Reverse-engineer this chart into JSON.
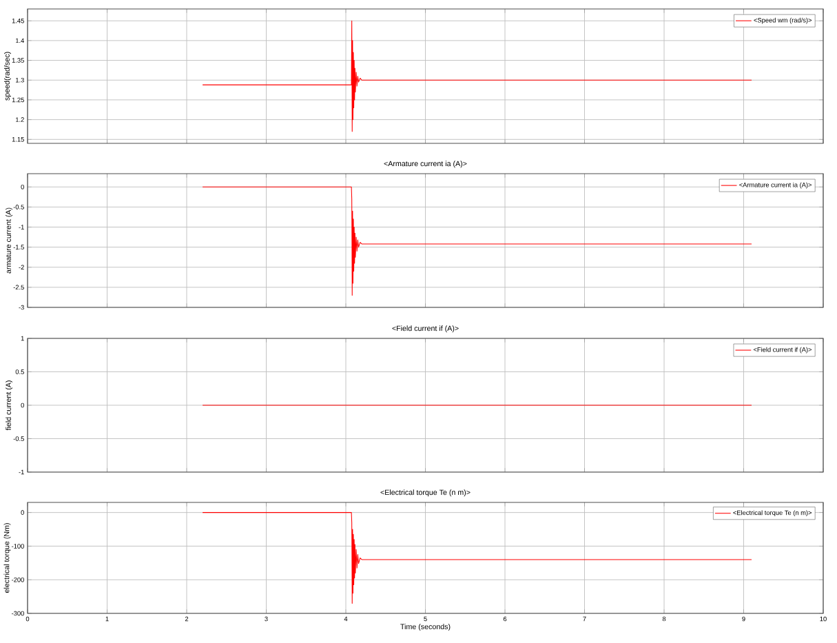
{
  "chart_data": [
    {
      "type": "line",
      "xlim": [
        0,
        10
      ],
      "xticks": [
        0,
        1,
        2,
        3,
        4,
        5,
        6,
        7,
        8,
        9,
        10
      ],
      "ylim": [
        1.14,
        1.48
      ],
      "yticks": [
        1.15,
        1.2,
        1.25,
        1.3,
        1.35,
        1.4,
        1.45
      ],
      "ylabel": "speed(rad/sec)",
      "grid": true,
      "legend": "top right",
      "tick_labels": "y",
      "series": [
        {
          "name": "<Speed wm (rad/s)>",
          "color": "#ff0000",
          "x": [
            2.2,
            4.07,
            4.075,
            4.08,
            4.085,
            4.09,
            4.095,
            4.1,
            4.105,
            4.11,
            4.115,
            4.12,
            4.13,
            4.14,
            4.15,
            4.16,
            4.18,
            4.2,
            9.1
          ],
          "values": [
            1.288,
            1.288,
            1.45,
            1.17,
            1.4,
            1.2,
            1.37,
            1.23,
            1.35,
            1.25,
            1.33,
            1.27,
            1.32,
            1.285,
            1.31,
            1.295,
            1.305,
            1.3,
            1.3
          ]
        }
      ]
    },
    {
      "type": "line",
      "title": "<Armature current ia (A)>",
      "xlim": [
        0,
        10
      ],
      "xticks": [
        0,
        1,
        2,
        3,
        4,
        5,
        6,
        7,
        8,
        9,
        10
      ],
      "ylim": [
        -3,
        0.33
      ],
      "yticks": [
        -3,
        -2.5,
        -2,
        -1.5,
        -1,
        -0.5,
        0
      ],
      "ylabel": "armature current (A)",
      "grid": true,
      "legend": "top right",
      "tick_labels": "y",
      "series": [
        {
          "name": "<Armature current ia (A)>",
          "color": "#ff0000",
          "x": [
            2.2,
            4.07,
            4.075,
            4.08,
            4.085,
            4.09,
            4.095,
            4.1,
            4.105,
            4.11,
            4.115,
            4.12,
            4.13,
            4.14,
            4.15,
            4.16,
            4.18,
            4.2,
            9.1
          ],
          "values": [
            0,
            0,
            -0.3,
            -2.7,
            -0.6,
            -2.4,
            -0.8,
            -2.1,
            -1.0,
            -1.9,
            -1.15,
            -1.75,
            -1.25,
            -1.6,
            -1.32,
            -1.5,
            -1.38,
            -1.42,
            -1.42
          ]
        }
      ]
    },
    {
      "type": "line",
      "title": "<Field current if (A)>",
      "xlim": [
        0,
        10
      ],
      "xticks": [
        0,
        1,
        2,
        3,
        4,
        5,
        6,
        7,
        8,
        9,
        10
      ],
      "ylim": [
        -1,
        1
      ],
      "yticks": [
        -1,
        -0.5,
        0,
        0.5,
        1
      ],
      "ylabel": "field current (A)",
      "grid": true,
      "legend": "top right",
      "tick_labels": "y",
      "series": [
        {
          "name": "<Field current if (A)>",
          "color": "#ff0000",
          "x": [
            2.2,
            9.1
          ],
          "values": [
            0,
            0
          ]
        }
      ]
    },
    {
      "type": "line",
      "title": "<Electrical torque Te (n m)>",
      "xlim": [
        0,
        10
      ],
      "xticks": [
        0,
        1,
        2,
        3,
        4,
        5,
        6,
        7,
        8,
        9,
        10
      ],
      "ylim": [
        -300,
        30
      ],
      "yticks": [
        -300,
        -200,
        -100,
        0
      ],
      "ylabel": "electrical torque (Nm)",
      "xlabel": "Time (seconds)",
      "grid": true,
      "legend": "top right",
      "series": [
        {
          "name": "<Electrical torque Te (n m)>",
          "color": "#ff0000",
          "x": [
            2.2,
            4.07,
            4.075,
            4.08,
            4.085,
            4.09,
            4.095,
            4.1,
            4.105,
            4.11,
            4.115,
            4.12,
            4.13,
            4.14,
            4.15,
            4.16,
            4.18,
            4.2,
            9.1
          ],
          "values": [
            0,
            0,
            -30,
            -270,
            -50,
            -240,
            -65,
            -215,
            -80,
            -195,
            -95,
            -180,
            -110,
            -165,
            -125,
            -152,
            -135,
            -140,
            -140
          ]
        }
      ]
    }
  ]
}
